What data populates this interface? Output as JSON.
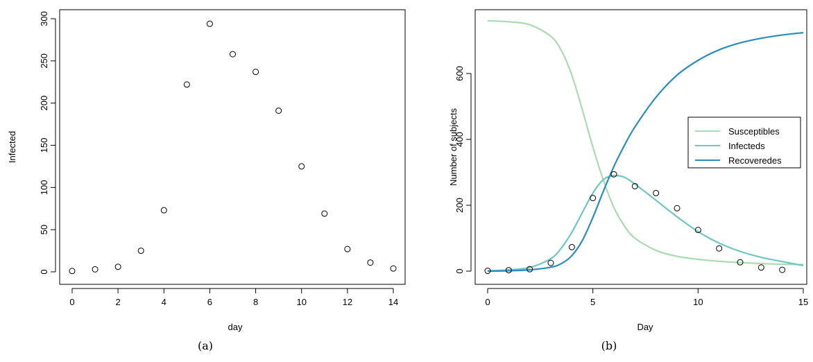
{
  "chart_data": [
    {
      "type": "scatter",
      "panel": "(a)",
      "xlabel": "day",
      "ylabel": "Infected",
      "xlim": [
        0,
        14
      ],
      "ylim": [
        0,
        300
      ],
      "xticks": [
        0,
        2,
        4,
        6,
        8,
        10,
        12,
        14
      ],
      "yticks": [
        0,
        50,
        100,
        150,
        200,
        250,
        300
      ],
      "x": [
        0,
        1,
        2,
        3,
        4,
        5,
        6,
        7,
        8,
        9,
        10,
        11,
        12,
        13,
        14
      ],
      "y": [
        1,
        3,
        6,
        25,
        73,
        222,
        294,
        258,
        237,
        191,
        125,
        69,
        27,
        11,
        4
      ],
      "grid": false
    },
    {
      "type": "line",
      "panel": "(b)",
      "xlabel": "Day",
      "ylabel": "Number of subjects",
      "xlim": [
        0,
        15
      ],
      "ylim": [
        0,
        763
      ],
      "xticks": [
        0,
        5,
        10,
        15
      ],
      "yticks": [
        0,
        200,
        400,
        600
      ],
      "legend_position": "right",
      "series": [
        {
          "name": "Susceptibles",
          "color": "#a8dcb0",
          "x": [
            0,
            1,
            2,
            3,
            3.5,
            4,
            4.5,
            5,
            5.5,
            6,
            6.5,
            7,
            8,
            9,
            10,
            11,
            12,
            13,
            14,
            15
          ],
          "y": [
            760,
            757,
            748,
            713,
            670,
            595,
            490,
            377,
            276,
            193,
            137,
            100,
            63,
            45,
            36,
            30,
            26,
            23,
            21,
            20
          ]
        },
        {
          "name": "Infecteds",
          "color": "#6cc7c4",
          "x": [
            0,
            1,
            2,
            3,
            3.5,
            4,
            4.5,
            5,
            5.5,
            6,
            6.5,
            7,
            7.5,
            8,
            9,
            10,
            11,
            12,
            13,
            14,
            15
          ],
          "y": [
            1,
            4,
            11,
            38,
            70,
            118,
            178,
            237,
            278,
            290,
            285,
            264,
            240,
            215,
            165,
            120,
            85,
            60,
            42,
            29,
            17
          ]
        },
        {
          "name": "Recoveredes",
          "color": "#2b8cbe",
          "x": [
            0,
            1,
            2,
            3,
            3.5,
            4,
            4.5,
            5,
            5.5,
            6,
            6.5,
            7,
            8,
            9,
            10,
            11,
            12,
            13,
            14,
            15
          ],
          "y": [
            0,
            1,
            4,
            12,
            23,
            47,
            93,
            163,
            243,
            318,
            382,
            438,
            528,
            595,
            640,
            672,
            693,
            707,
            717,
            724
          ]
        }
      ],
      "observed": {
        "x": [
          0,
          1,
          2,
          3,
          4,
          5,
          6,
          7,
          8,
          9,
          10,
          11,
          12,
          13,
          14
        ],
        "y": [
          1,
          3,
          6,
          25,
          73,
          222,
          294,
          258,
          237,
          191,
          125,
          69,
          27,
          11,
          4
        ]
      },
      "grid": false
    }
  ],
  "captions": [
    "(a)",
    "(b)"
  ]
}
